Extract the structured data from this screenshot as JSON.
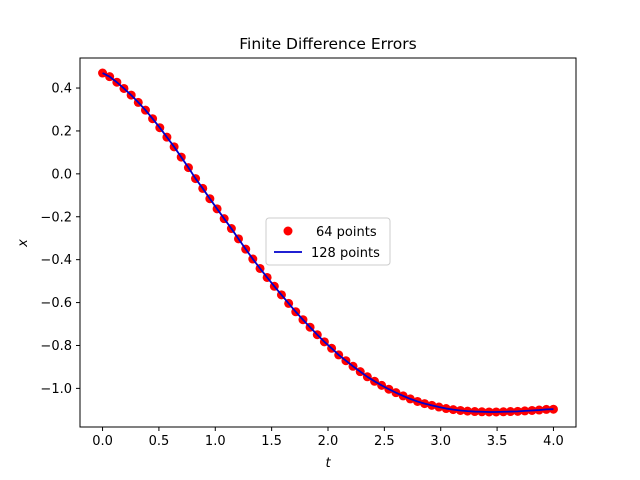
{
  "chart_data": {
    "type": "scatter",
    "title": "Finite Difference Errors",
    "xlabel": "t",
    "ylabel": "x",
    "xlim": [
      -0.2,
      4.2
    ],
    "ylim": [
      -1.18,
      0.54
    ],
    "xticks": [
      0.0,
      0.5,
      1.0,
      1.5,
      2.0,
      2.5,
      3.0,
      3.5,
      4.0
    ],
    "xtick_labels": [
      "0.0",
      "0.5",
      "1.0",
      "1.5",
      "2.0",
      "2.5",
      "3.0",
      "3.5",
      "4.0"
    ],
    "yticks": [
      -1.0,
      -0.8,
      -0.6,
      -0.4,
      -0.2,
      0.0,
      0.2,
      0.4
    ],
    "ytick_labels": [
      "−1.0",
      "−0.8",
      "−0.6",
      "−0.4",
      "−0.2",
      "0.0",
      "0.2",
      "0.4"
    ],
    "grid": false,
    "legend_position": "center",
    "series": [
      {
        "name": "64 points",
        "type": "scatter",
        "color": "#ff0000",
        "x": [
          0.0,
          0.063,
          0.127,
          0.19,
          0.254,
          0.317,
          0.381,
          0.444,
          0.508,
          0.571,
          0.635,
          0.698,
          0.762,
          0.825,
          0.889,
          0.952,
          1.016,
          1.079,
          1.143,
          1.206,
          1.27,
          1.333,
          1.397,
          1.46,
          1.524,
          1.587,
          1.651,
          1.714,
          1.778,
          1.841,
          1.905,
          1.968,
          2.032,
          2.095,
          2.159,
          2.222,
          2.286,
          2.349,
          2.413,
          2.476,
          2.54,
          2.603,
          2.667,
          2.73,
          2.794,
          2.857,
          2.921,
          2.984,
          3.048,
          3.111,
          3.175,
          3.238,
          3.302,
          3.365,
          3.429,
          3.492,
          3.556,
          3.619,
          3.683,
          3.746,
          3.81,
          3.873,
          3.937,
          4.0
        ],
        "y": [
          0.47,
          0.453,
          0.427,
          0.398,
          0.367,
          0.333,
          0.297,
          0.257,
          0.215,
          0.171,
          0.126,
          0.078,
          0.029,
          -0.022,
          -0.068,
          -0.116,
          -0.163,
          -0.209,
          -0.255,
          -0.303,
          -0.351,
          -0.397,
          -0.441,
          -0.483,
          -0.524,
          -0.564,
          -0.604,
          -0.643,
          -0.68,
          -0.715,
          -0.75,
          -0.783,
          -0.813,
          -0.844,
          -0.871,
          -0.897,
          -0.922,
          -0.946,
          -0.967,
          -0.986,
          -1.004,
          -1.02,
          -1.035,
          -1.049,
          -1.061,
          -1.071,
          -1.079,
          -1.087,
          -1.094,
          -1.099,
          -1.103,
          -1.106,
          -1.108,
          -1.109,
          -1.11,
          -1.11,
          -1.109,
          -1.108,
          -1.107,
          -1.105,
          -1.103,
          -1.101,
          -1.098,
          -1.097
        ]
      },
      {
        "name": "128 points",
        "type": "line",
        "color": "#0000cc",
        "x": [
          0.0,
          0.063,
          0.127,
          0.19,
          0.254,
          0.317,
          0.381,
          0.444,
          0.508,
          0.571,
          0.635,
          0.698,
          0.762,
          0.825,
          0.889,
          0.952,
          1.016,
          1.079,
          1.143,
          1.206,
          1.27,
          1.333,
          1.397,
          1.46,
          1.524,
          1.587,
          1.651,
          1.714,
          1.778,
          1.841,
          1.905,
          1.968,
          2.032,
          2.095,
          2.159,
          2.222,
          2.286,
          2.349,
          2.413,
          2.476,
          2.54,
          2.603,
          2.667,
          2.73,
          2.794,
          2.857,
          2.921,
          2.984,
          3.048,
          3.111,
          3.175,
          3.238,
          3.302,
          3.365,
          3.429,
          3.492,
          3.556,
          3.619,
          3.683,
          3.746,
          3.81,
          3.873,
          3.937,
          4.0
        ],
        "y": [
          0.47,
          0.453,
          0.427,
          0.398,
          0.367,
          0.333,
          0.297,
          0.257,
          0.215,
          0.171,
          0.126,
          0.078,
          0.029,
          -0.022,
          -0.068,
          -0.116,
          -0.163,
          -0.209,
          -0.255,
          -0.303,
          -0.351,
          -0.397,
          -0.441,
          -0.483,
          -0.524,
          -0.564,
          -0.604,
          -0.643,
          -0.68,
          -0.715,
          -0.75,
          -0.783,
          -0.813,
          -0.844,
          -0.871,
          -0.897,
          -0.922,
          -0.946,
          -0.967,
          -0.986,
          -1.004,
          -1.02,
          -1.035,
          -1.049,
          -1.061,
          -1.071,
          -1.079,
          -1.087,
          -1.094,
          -1.099,
          -1.103,
          -1.106,
          -1.108,
          -1.109,
          -1.11,
          -1.11,
          -1.109,
          -1.108,
          -1.107,
          -1.105,
          -1.103,
          -1.101,
          -1.098,
          -1.097
        ]
      }
    ]
  }
}
